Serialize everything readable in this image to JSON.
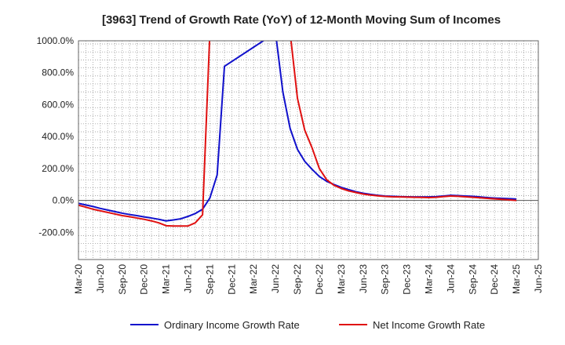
{
  "chart_data": {
    "type": "line",
    "title": "[3963]  Trend of Growth Rate (YoY) of 12-Month Moving Sum of Incomes",
    "xlabel": "",
    "ylabel": "",
    "ylim": [
      -370,
      1000
    ],
    "yticks": [
      1000,
      800,
      600,
      400,
      200,
      0,
      -200
    ],
    "ytick_labels": [
      "1000.0%",
      "800.0%",
      "600.0%",
      "400.0%",
      "200.0%",
      "0.0%",
      "-200.0%"
    ],
    "x_tick_labels": [
      "Mar-20",
      "Jun-20",
      "Sep-20",
      "Dec-20",
      "Mar-21",
      "Jun-21",
      "Sep-21",
      "Dec-21",
      "Mar-22",
      "Jun-22",
      "Sep-22",
      "Dec-22",
      "Mar-23",
      "Jun-23",
      "Sep-23",
      "Dec-23",
      "Mar-24",
      "Jun-24",
      "Sep-24",
      "Dec-24",
      "Mar-25",
      "Jun-25"
    ],
    "x_range": [
      "Mar-20",
      "Jun-25"
    ],
    "grid": true,
    "legend_position": "bottom",
    "series": [
      {
        "name": "Ordinary Income Growth Rate",
        "color": "#1010cc",
        "points": [
          [
            "Mar-20",
            -18
          ],
          [
            "Apr-20",
            -28
          ],
          [
            "May-20",
            -38
          ],
          [
            "Jun-20",
            -50
          ],
          [
            "Jul-20",
            -60
          ],
          [
            "Aug-20",
            -70
          ],
          [
            "Sep-20",
            -80
          ],
          [
            "Oct-20",
            -88
          ],
          [
            "Nov-20",
            -95
          ],
          [
            "Dec-20",
            -103
          ],
          [
            "Jan-21",
            -110
          ],
          [
            "Feb-21",
            -118
          ],
          [
            "Mar-21",
            -128
          ],
          [
            "Apr-21",
            -122
          ],
          [
            "May-21",
            -115
          ],
          [
            "Jun-21",
            -100
          ],
          [
            "Jul-21",
            -82
          ],
          [
            "Aug-21",
            -55
          ],
          [
            "Sep-21",
            15
          ],
          [
            "Oct-21",
            160
          ],
          [
            "Nov-21",
            840
          ],
          [
            "Jun-22",
            1050
          ],
          [
            "Jul-22",
            680
          ],
          [
            "Aug-22",
            450
          ],
          [
            "Sep-22",
            320
          ],
          [
            "Oct-22",
            245
          ],
          [
            "Nov-22",
            195
          ],
          [
            "Dec-22",
            150
          ],
          [
            "Jan-23",
            120
          ],
          [
            "Feb-23",
            100
          ],
          [
            "Mar-23",
            82
          ],
          [
            "Apr-23",
            68
          ],
          [
            "May-23",
            55
          ],
          [
            "Jun-23",
            45
          ],
          [
            "Jul-23",
            38
          ],
          [
            "Aug-23",
            32
          ],
          [
            "Sep-23",
            28
          ],
          [
            "Oct-23",
            26
          ],
          [
            "Nov-23",
            24
          ],
          [
            "Dec-23",
            23
          ],
          [
            "Jan-24",
            22
          ],
          [
            "Feb-24",
            22
          ],
          [
            "Mar-24",
            22
          ],
          [
            "Apr-24",
            24
          ],
          [
            "May-24",
            28
          ],
          [
            "Jun-24",
            32
          ],
          [
            "Jul-24",
            30
          ],
          [
            "Aug-24",
            28
          ],
          [
            "Sep-24",
            26
          ],
          [
            "Oct-24",
            22
          ],
          [
            "Nov-24",
            18
          ],
          [
            "Dec-24",
            15
          ],
          [
            "Jan-25",
            13
          ],
          [
            "Feb-25",
            11
          ],
          [
            "Mar-25",
            9
          ]
        ]
      },
      {
        "name": "Net Income Growth Rate",
        "color": "#e01010",
        "points": [
          [
            "Mar-20",
            -30
          ],
          [
            "Apr-20",
            -42
          ],
          [
            "May-20",
            -55
          ],
          [
            "Jun-20",
            -65
          ],
          [
            "Jul-20",
            -75
          ],
          [
            "Aug-20",
            -85
          ],
          [
            "Sep-20",
            -95
          ],
          [
            "Oct-20",
            -102
          ],
          [
            "Nov-20",
            -110
          ],
          [
            "Dec-20",
            -118
          ],
          [
            "Jan-21",
            -128
          ],
          [
            "Feb-21",
            -140
          ],
          [
            "Mar-21",
            -158
          ],
          [
            "Apr-21",
            -160
          ],
          [
            "May-21",
            -160
          ],
          [
            "Jun-21",
            -160
          ],
          [
            "Jul-21",
            -140
          ],
          [
            "Aug-21",
            -90
          ],
          [
            "Sep-21",
            1050
          ],
          [
            "Aug-22",
            1050
          ],
          [
            "Sep-22",
            640
          ],
          [
            "Oct-22",
            440
          ],
          [
            "Nov-22",
            330
          ],
          [
            "Dec-22",
            200
          ],
          [
            "Jan-23",
            130
          ],
          [
            "Feb-23",
            95
          ],
          [
            "Mar-23",
            75
          ],
          [
            "Apr-23",
            60
          ],
          [
            "May-23",
            50
          ],
          [
            "Jun-23",
            40
          ],
          [
            "Jul-23",
            34
          ],
          [
            "Aug-23",
            29
          ],
          [
            "Sep-23",
            25
          ],
          [
            "Oct-23",
            23
          ],
          [
            "Nov-23",
            22
          ],
          [
            "Dec-23",
            21
          ],
          [
            "Jan-24",
            20
          ],
          [
            "Feb-24",
            19
          ],
          [
            "Mar-24",
            18
          ],
          [
            "Apr-24",
            20
          ],
          [
            "May-24",
            24
          ],
          [
            "Jun-24",
            28
          ],
          [
            "Jul-24",
            26
          ],
          [
            "Aug-24",
            23
          ],
          [
            "Sep-24",
            20
          ],
          [
            "Oct-24",
            17
          ],
          [
            "Nov-24",
            13
          ],
          [
            "Dec-24",
            10
          ],
          [
            "Jan-25",
            7
          ],
          [
            "Feb-25",
            4
          ],
          [
            "Mar-25",
            0
          ]
        ]
      }
    ]
  }
}
